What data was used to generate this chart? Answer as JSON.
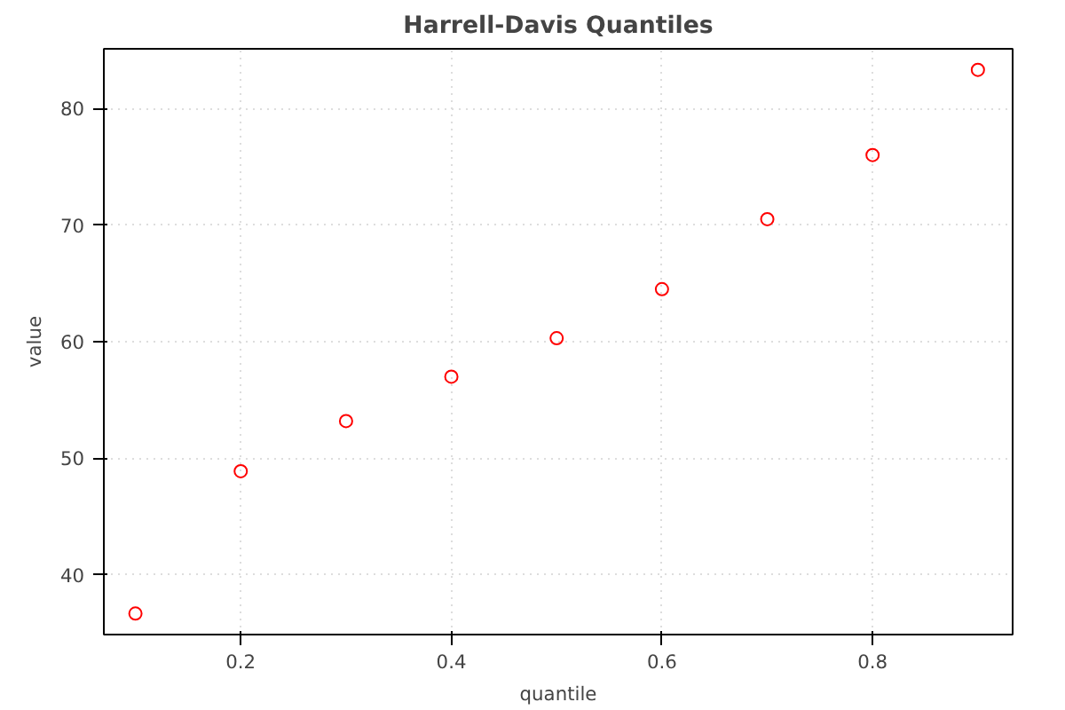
{
  "chart_data": {
    "type": "scatter",
    "title": "Harrell-Davis Quantiles",
    "xlabel": "quantile",
    "ylabel": "value",
    "x": [
      0.1,
      0.2,
      0.3,
      0.4,
      0.5,
      0.6,
      0.7,
      0.8,
      0.9
    ],
    "series": [
      {
        "color": "#ff0000",
        "values": [
          36.7,
          48.9,
          53.2,
          57.0,
          60.3,
          64.5,
          70.5,
          76.0,
          83.3
        ]
      }
    ],
    "xlim": [
      0.07,
      0.933
    ],
    "ylim": [
      34.9,
      85.1
    ],
    "xticks": [
      0.2,
      0.4,
      0.6,
      0.8
    ],
    "yticks": [
      40,
      50,
      60,
      70,
      80
    ],
    "grid": true,
    "marker": "circle"
  }
}
